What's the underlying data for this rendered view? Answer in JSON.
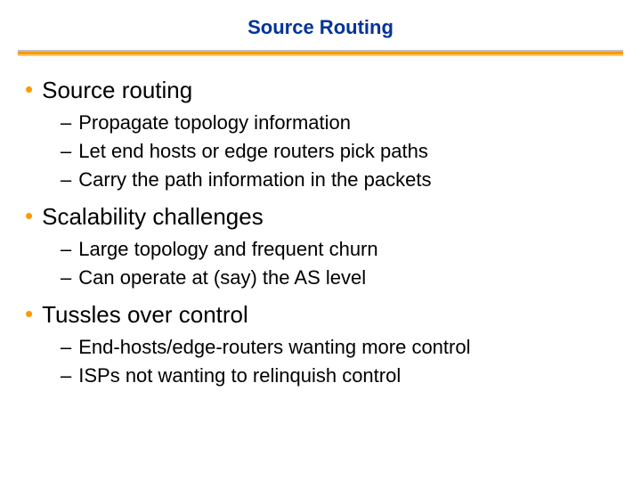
{
  "title": "Source Routing",
  "colors": {
    "title_color": "#003399",
    "bullet_color": "#ff9900",
    "text_color": "#000000",
    "background": "#ffffff",
    "divider_top": "#c0c0c0",
    "divider_mid": "#ff9900",
    "divider_bot": "#ffcc66"
  },
  "typography": {
    "title_fontsize": 22,
    "bullet_fontsize": 26,
    "sub_fontsize": 22,
    "font_family": "Verdana"
  },
  "bullets": [
    {
      "label": "Source routing",
      "subs": [
        "Propagate topology information",
        "Let end hosts or edge routers pick paths",
        "Carry the path information in the packets"
      ]
    },
    {
      "label": "Scalability challenges",
      "subs": [
        "Large topology and frequent churn",
        "Can operate at (say) the AS level"
      ]
    },
    {
      "label": "Tussles over control",
      "subs": [
        "End-hosts/edge-routers wanting more control",
        "ISPs not wanting to relinquish control"
      ]
    }
  ]
}
